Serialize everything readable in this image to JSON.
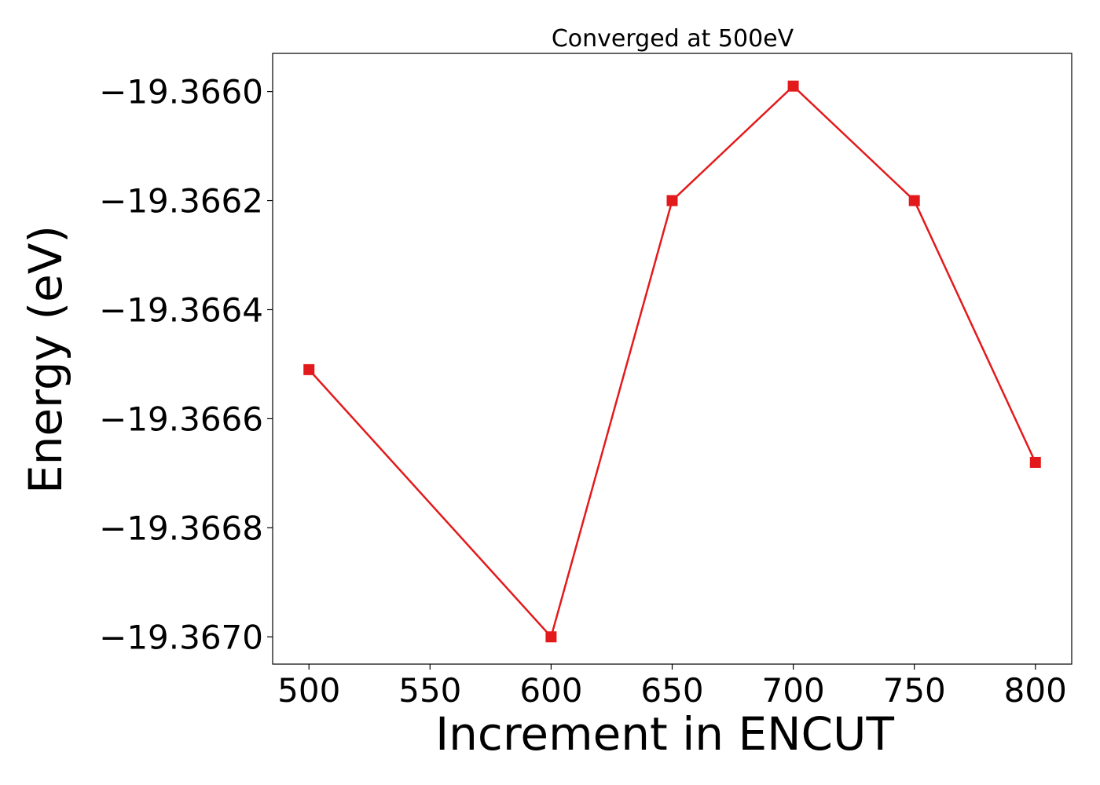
{
  "chart_data": {
    "type": "line",
    "title": "Converged at 500eV",
    "xlabel": "Increment in ENCUT",
    "ylabel": "Energy (eV)",
    "x": [
      500,
      600,
      650,
      700,
      750,
      800
    ],
    "series": [
      {
        "values": [
          -19.36651,
          -19.367,
          -19.3662,
          -19.36599,
          -19.3662,
          -19.36668
        ],
        "color": "#e31a1c",
        "marker": "square"
      }
    ],
    "xlim": [
      485,
      815
    ],
    "ylim": [
      -19.36705,
      -19.36593
    ],
    "x_ticks": [
      500,
      550,
      600,
      650,
      700,
      750,
      800
    ],
    "x_tick_labels": [
      "500",
      "550",
      "600",
      "650",
      "700",
      "750",
      "800"
    ],
    "y_ticks": [
      -19.367,
      -19.3668,
      -19.3666,
      -19.3664,
      -19.3662,
      -19.366
    ],
    "y_tick_labels": [
      "−19.3670",
      "−19.3668",
      "−19.3666",
      "−19.3664",
      "−19.3662",
      "−19.3660"
    ],
    "grid": false,
    "legend": "none"
  }
}
